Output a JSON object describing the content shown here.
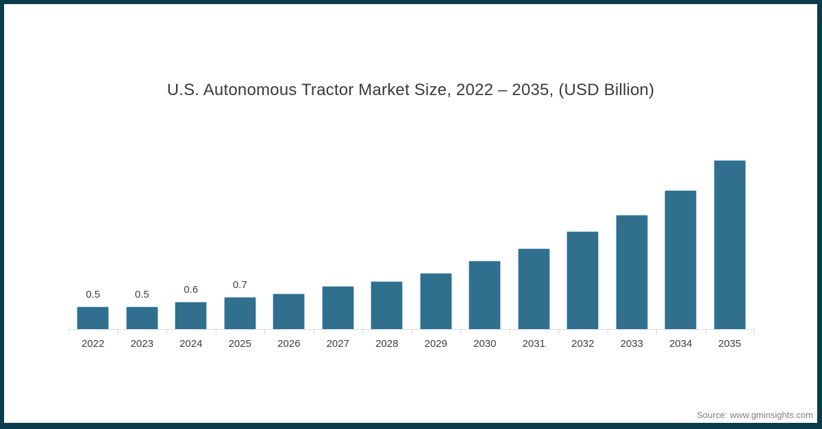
{
  "frame": {
    "border_color": "#0b3c4c",
    "background": "#ffffff"
  },
  "chart_data": {
    "type": "bar",
    "title": "U.S. Autonomous Tractor Market Size, 2022 – 2035, (USD Billion)",
    "categories": [
      "2022",
      "2023",
      "2024",
      "2025",
      "2026",
      "2027",
      "2028",
      "2029",
      "2030",
      "2031",
      "2032",
      "2033",
      "2034",
      "2035"
    ],
    "values": [
      0.5,
      0.5,
      0.6,
      0.7,
      0.78,
      0.94,
      1.04,
      1.22,
      1.49,
      1.77,
      2.14,
      2.49,
      3.04,
      3.69
    ],
    "data_labels": [
      "0.5",
      "0.5",
      "0.6",
      "0.7",
      "",
      "",
      "",
      "",
      "",
      "",
      "",
      "",
      "",
      ""
    ],
    "xlabel": "",
    "ylabel": "",
    "ylim": [
      0,
      3.9
    ],
    "grid": false,
    "legend": false,
    "bar_color": "#306f8e",
    "bar_border_color": "#a7c9da",
    "axis_color": "#d8dce4",
    "label_color": "#404040",
    "title_color": "#3a3a3a"
  },
  "source": {
    "label": "Source: www.gminsights.com"
  }
}
